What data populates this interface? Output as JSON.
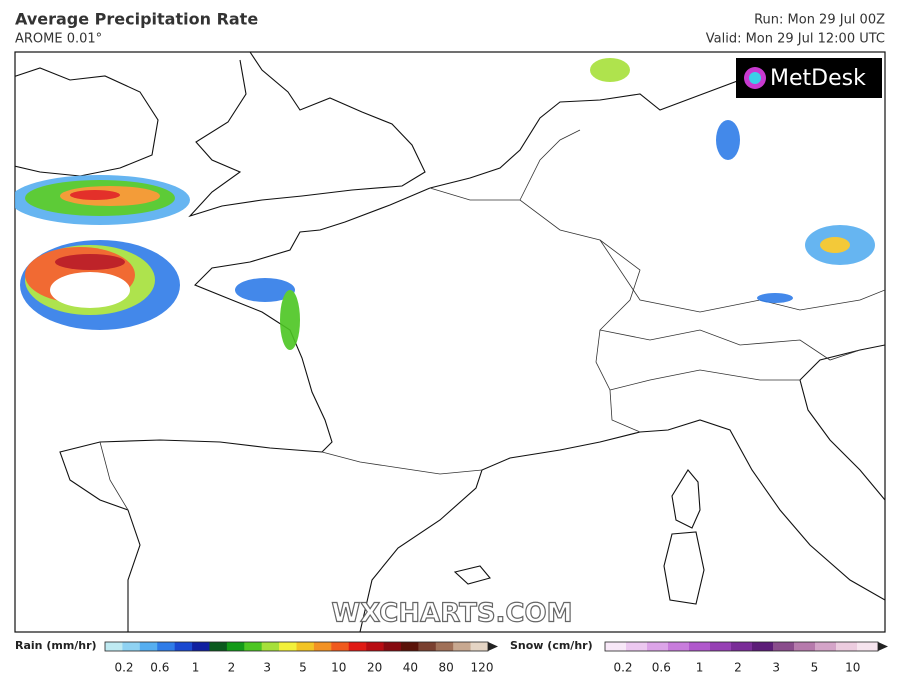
{
  "header": {
    "title": "Average Precipitation Rate",
    "subtitle": "AROME 0.01°",
    "run": "Run: Mon 29 Jul 00Z",
    "valid": "Valid: Mon 29 Jul 12:00 UTC"
  },
  "logo": "MetDesk",
  "watermark": "WXCHARTS.COM",
  "legend": {
    "rain": {
      "label": "Rain (mm/hr)",
      "ticks": [
        "0.2",
        "0.6",
        "1",
        "2",
        "3",
        "5",
        "10",
        "20",
        "40",
        "80",
        "120"
      ],
      "colors": [
        "#bfeaf2",
        "#8fd2f2",
        "#56aef0",
        "#2f7ce8",
        "#1a48d0",
        "#1020a0",
        "#0b5a1e",
        "#139a18",
        "#4cc622",
        "#a6e03a",
        "#f2f03a",
        "#f2c424",
        "#f29224",
        "#f05a1e",
        "#e01a14",
        "#b80c12",
        "#860a10",
        "#5a1208",
        "#7a4030",
        "#a07058",
        "#c8a890",
        "#e4d4c4"
      ]
    },
    "snow": {
      "label": "Snow (cm/hr)",
      "ticks": [
        "0.2",
        "0.6",
        "1",
        "2",
        "3",
        "5",
        "10"
      ],
      "colors": [
        "#f8e8f8",
        "#ecc8f0",
        "#dca4e8",
        "#c87cdc",
        "#b058cc",
        "#9640b4",
        "#7a2c98",
        "#5c1c78",
        "#8a4c8c",
        "#b67aac",
        "#d4a4c8",
        "#ecccdf",
        "#f6e4ee"
      ]
    }
  }
}
